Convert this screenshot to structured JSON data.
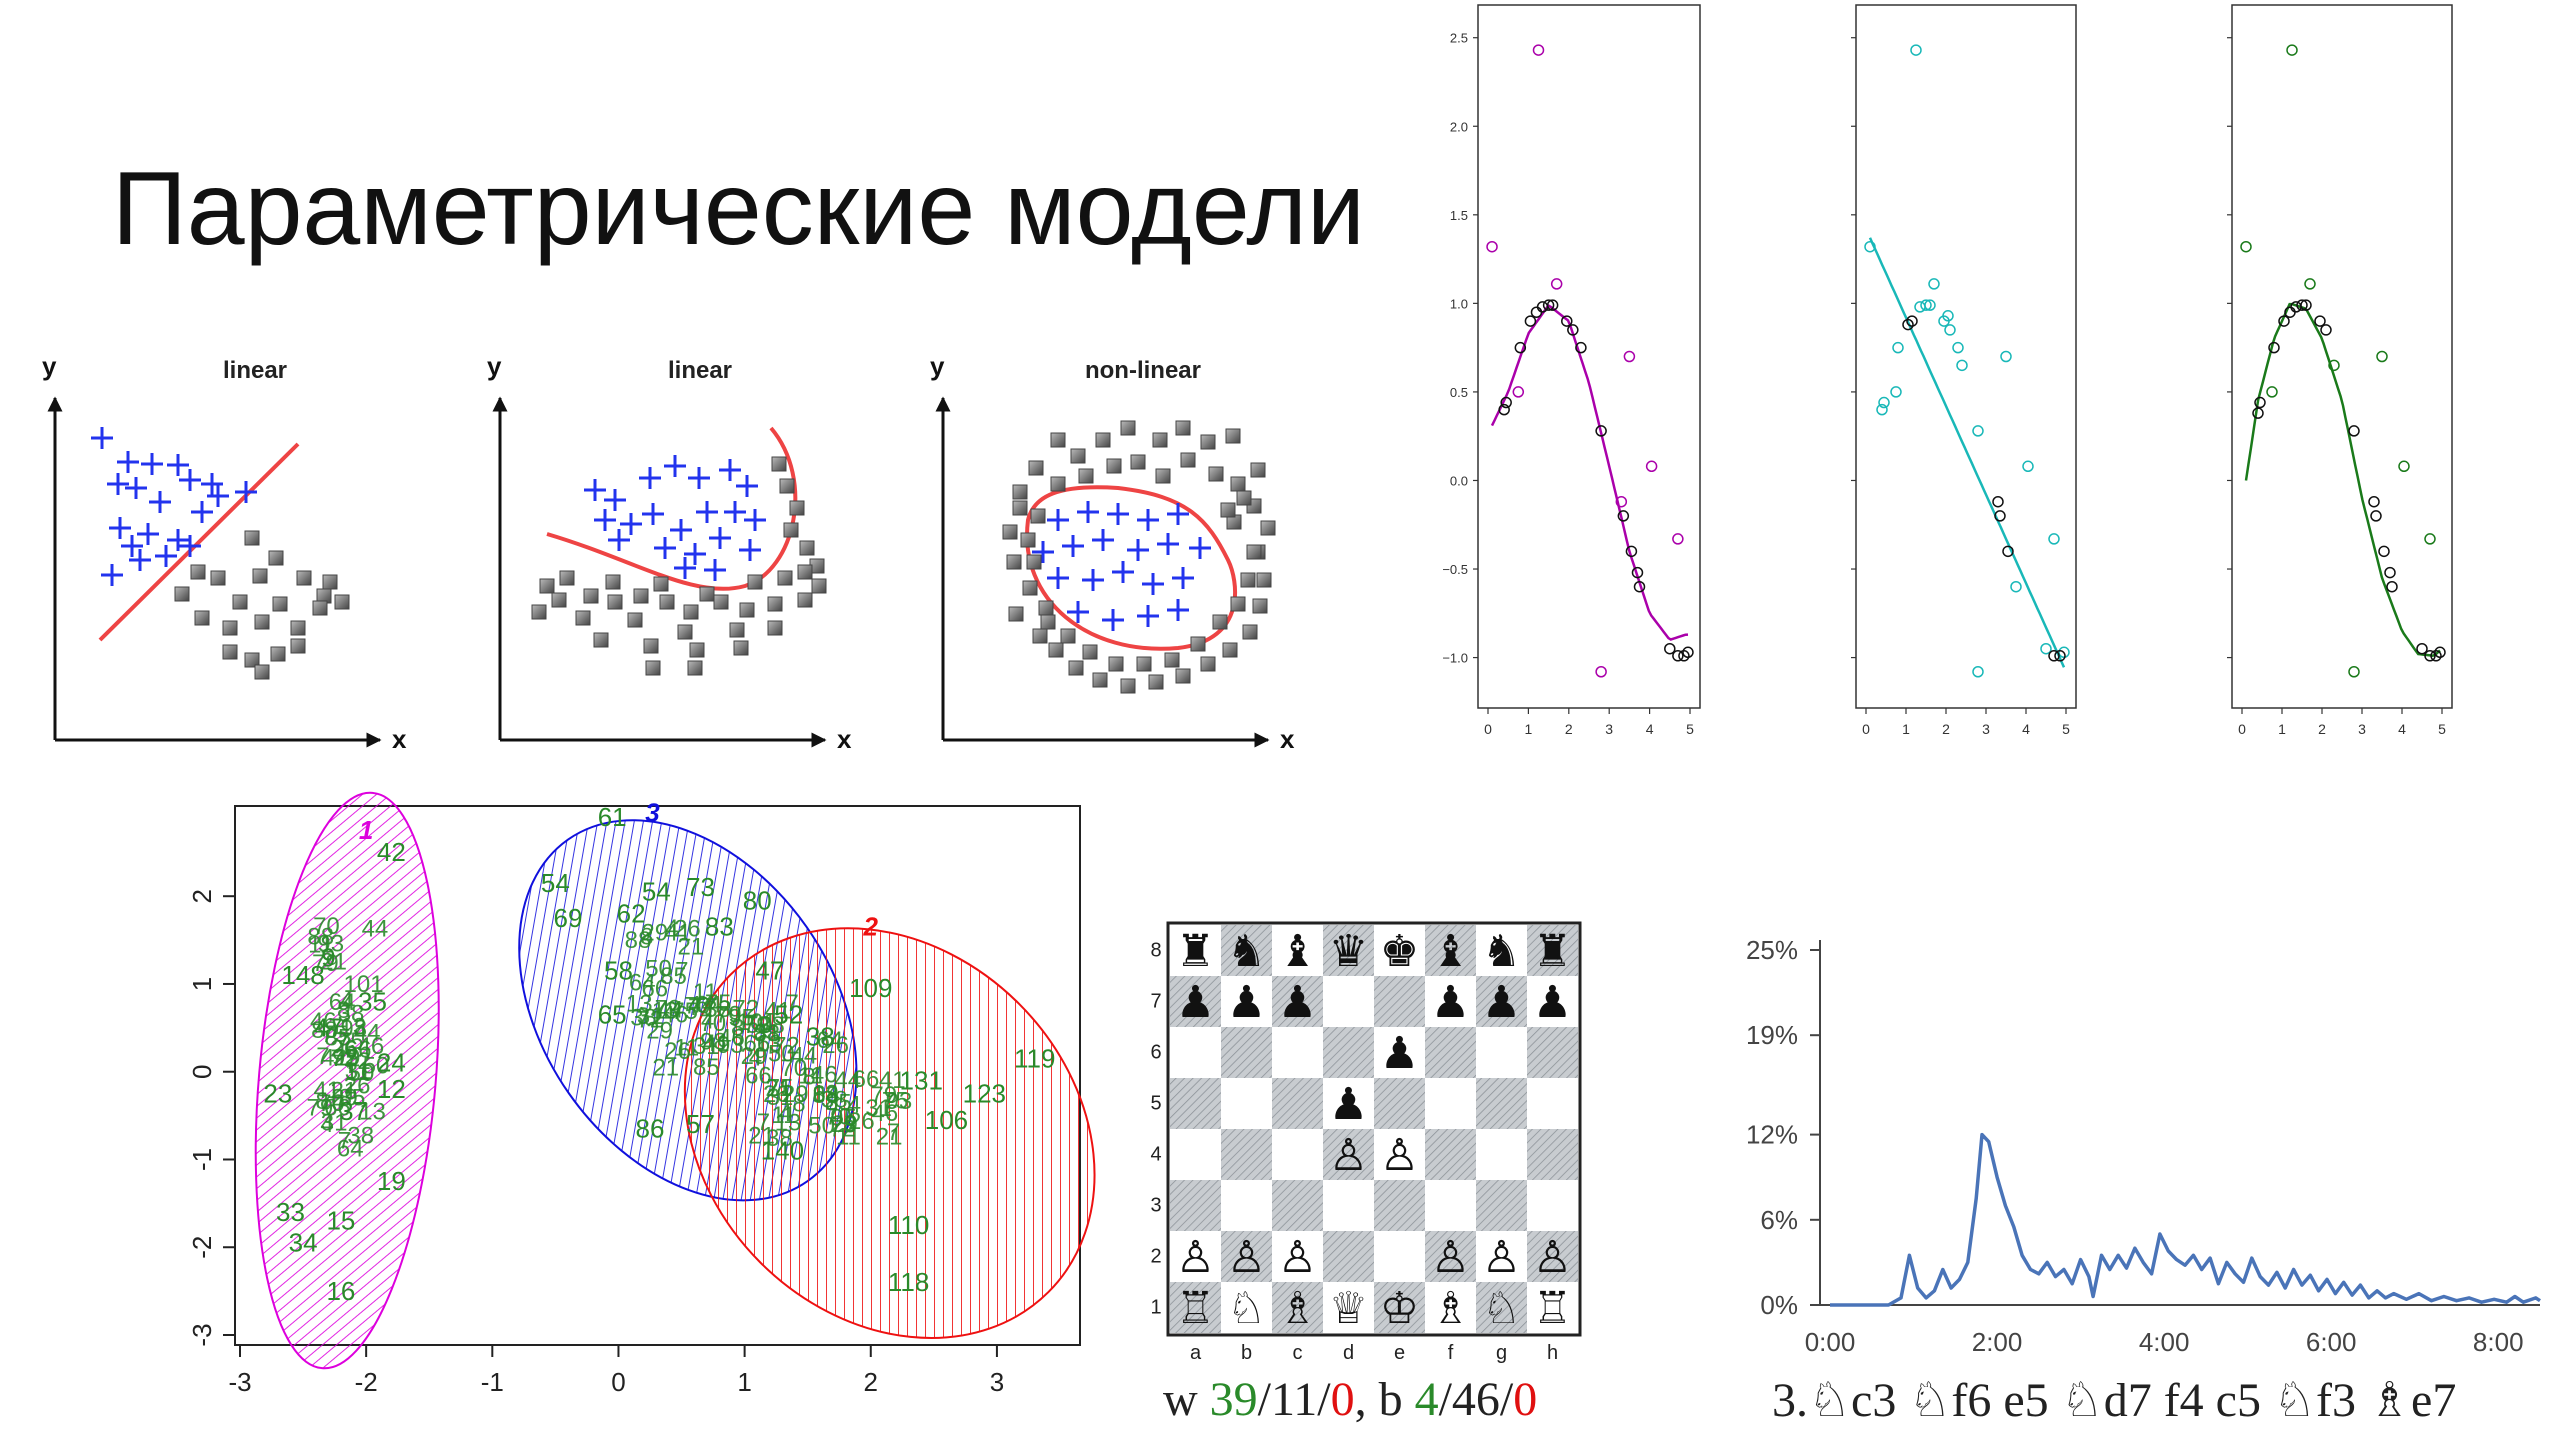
{
  "slide": {
    "title": "Параметрические модели"
  },
  "classifiers": [
    {
      "label": "linear",
      "y": "y",
      "x": "x"
    },
    {
      "label": "linear",
      "y": "y",
      "x": "x"
    },
    {
      "label": "non-linear",
      "y": "y",
      "x": "x"
    }
  ],
  "chart_data": [
    {
      "type": "scatter",
      "panel": "fit-polynomial",
      "fit_color": "#aa00aa",
      "xlim": [
        0,
        5
      ],
      "ylim": [
        -1.2,
        2.6
      ],
      "xticks": [
        "0",
        "1",
        "2",
        "3",
        "4",
        "5"
      ],
      "yticks": [
        "2.5",
        "2.0",
        "1.5",
        "1.0",
        "0.5",
        "0.0",
        "−0.5",
        "−1.0"
      ],
      "series": [
        {
          "points": [
            [
              0.1,
              1.32
            ],
            [
              1.25,
              2.43
            ],
            [
              1.7,
              1.11
            ],
            [
              0.75,
              0.5
            ],
            [
              2.8,
              -1.08
            ],
            [
              3.5,
              0.7
            ],
            [
              4.05,
              0.08
            ],
            [
              4.7,
              -0.33
            ],
            [
              3.3,
              -0.12
            ]
          ]
        },
        {
          "points": [
            [
              0.4,
              0.4
            ],
            [
              0.45,
              0.44
            ],
            [
              0.8,
              0.75
            ],
            [
              1.05,
              0.9
            ],
            [
              1.2,
              0.95
            ],
            [
              1.35,
              0.98
            ],
            [
              1.5,
              0.99
            ],
            [
              1.6,
              0.99
            ],
            [
              1.95,
              0.9
            ],
            [
              2.1,
              0.85
            ],
            [
              2.3,
              0.75
            ],
            [
              2.8,
              0.28
            ],
            [
              3.35,
              -0.2
            ],
            [
              3.55,
              -0.4
            ],
            [
              3.7,
              -0.52
            ],
            [
              3.75,
              -0.6
            ],
            [
              4.5,
              -0.95
            ],
            [
              4.7,
              -0.99
            ],
            [
              4.85,
              -0.99
            ],
            [
              4.95,
              -0.97
            ]
          ]
        }
      ]
    },
    {
      "type": "scatter",
      "panel": "fit-linear",
      "fit_color": "#19b8b8",
      "xlim": [
        0,
        5
      ],
      "ylim": [
        -1.2,
        2.6
      ],
      "xticks": [
        "0",
        "1",
        "2",
        "3",
        "4",
        "5"
      ],
      "series": [
        {
          "points": [
            [
              0.1,
              1.32
            ],
            [
              1.25,
              2.43
            ],
            [
              1.7,
              1.11
            ],
            [
              0.75,
              0.5
            ],
            [
              2.8,
              -1.08
            ],
            [
              3.5,
              0.7
            ],
            [
              4.05,
              0.08
            ],
            [
              4.7,
              -0.33
            ],
            [
              0.4,
              0.4
            ],
            [
              0.45,
              0.44
            ],
            [
              0.8,
              0.75
            ],
            [
              1.35,
              0.98
            ],
            [
              1.5,
              0.99
            ],
            [
              1.6,
              0.99
            ],
            [
              2.1,
              0.85
            ],
            [
              2.3,
              0.75
            ],
            [
              2.8,
              0.28
            ],
            [
              3.75,
              -0.6
            ],
            [
              4.5,
              -0.95
            ],
            [
              4.95,
              -0.97
            ],
            [
              1.95,
              0.9
            ],
            [
              2.05,
              0.93
            ],
            [
              2.4,
              0.65
            ]
          ]
        },
        {
          "points": [
            [
              1.05,
              0.88
            ],
            [
              1.15,
              0.9
            ],
            [
              3.3,
              -0.12
            ],
            [
              3.35,
              -0.2
            ],
            [
              3.55,
              -0.4
            ],
            [
              4.7,
              -0.99
            ],
            [
              4.85,
              -0.99
            ]
          ]
        }
      ]
    },
    {
      "type": "scatter",
      "panel": "fit-nonlinear",
      "fit_color": "#1a7a1a",
      "xlim": [
        0,
        5
      ],
      "ylim": [
        -1.2,
        2.6
      ],
      "xticks": [
        "0",
        "1",
        "2",
        "3",
        "4",
        "5"
      ],
      "series": [
        {
          "points": [
            [
              0.1,
              1.32
            ],
            [
              1.25,
              2.43
            ],
            [
              1.7,
              1.11
            ],
            [
              0.75,
              0.5
            ],
            [
              2.8,
              -1.08
            ],
            [
              3.5,
              0.7
            ],
            [
              4.05,
              0.08
            ],
            [
              4.7,
              -0.33
            ],
            [
              2.3,
              0.65
            ]
          ]
        },
        {
          "points": [
            [
              0.4,
              0.38
            ],
            [
              0.45,
              0.44
            ],
            [
              0.8,
              0.75
            ],
            [
              1.05,
              0.9
            ],
            [
              1.2,
              0.95
            ],
            [
              1.35,
              0.98
            ],
            [
              1.5,
              0.99
            ],
            [
              1.6,
              0.99
            ],
            [
              1.95,
              0.9
            ],
            [
              2.1,
              0.85
            ],
            [
              2.8,
              0.28
            ],
            [
              3.3,
              -0.12
            ],
            [
              3.35,
              -0.2
            ],
            [
              3.55,
              -0.4
            ],
            [
              3.7,
              -0.52
            ],
            [
              3.75,
              -0.6
            ],
            [
              4.5,
              -0.95
            ],
            [
              4.7,
              -0.99
            ],
            [
              4.85,
              -0.99
            ],
            [
              4.95,
              -0.97
            ]
          ]
        }
      ]
    },
    {
      "type": "scatter",
      "panel": "clusters",
      "xlim": [
        -3,
        3.5
      ],
      "ylim": [
        -3,
        2.8
      ],
      "xticks": [
        "-3",
        "-2",
        "-1",
        "0",
        "1",
        "2",
        "3"
      ],
      "yticks": [
        "2",
        "1",
        "0",
        "-1",
        "-2",
        "-3"
      ],
      "clusters": [
        {
          "id": "1",
          "color": "#dd00dd",
          "cx": -2.15,
          "cy": -0.1,
          "rx": 0.7,
          "ry": 2.7,
          "rot": 5
        },
        {
          "id": "3",
          "color": "#1010dd",
          "cx": 0.55,
          "cy": 0.7,
          "rx": 1.15,
          "ry": 1.95,
          "rot": -35
        },
        {
          "id": "2",
          "color": "#ee1111",
          "cx": 2.15,
          "cy": -0.7,
          "rx": 1.45,
          "ry": 2.1,
          "rot": -45
        }
      ],
      "labels": [
        [
          "42",
          -1.8,
          2.4
        ],
        [
          "9",
          -2.3,
          1.2
        ],
        [
          "148",
          -2.5,
          1.0
        ],
        [
          "35",
          -1.95,
          0.7
        ],
        [
          "24",
          -1.8,
          0
        ],
        [
          "23",
          -2.7,
          -0.35
        ],
        [
          "19",
          -1.8,
          -1.35
        ],
        [
          "33",
          -2.6,
          -1.7
        ],
        [
          "15",
          -2.2,
          -1.8
        ],
        [
          "34",
          -2.5,
          -2.05
        ],
        [
          "16",
          -2.2,
          -2.6
        ],
        [
          "47",
          -2.3,
          0.4
        ],
        [
          "12",
          -1.8,
          -0.3
        ],
        [
          "37",
          -2.1,
          -0.55
        ],
        [
          "61",
          -0.05,
          2.8
        ],
        [
          "54",
          -0.5,
          2.05
        ],
        [
          "69",
          -0.4,
          1.65
        ],
        [
          "54",
          0.3,
          1.95
        ],
        [
          "73",
          0.65,
          2.0
        ],
        [
          "80",
          1.1,
          1.85
        ],
        [
          "83",
          0.8,
          1.55
        ],
        [
          "62",
          0.1,
          1.7
        ],
        [
          "58",
          0.0,
          1.05
        ],
        [
          "65",
          -0.05,
          0.55
        ],
        [
          "86",
          0.25,
          -0.75
        ],
        [
          "57",
          0.65,
          -0.7
        ],
        [
          "47",
          1.2,
          1.05
        ],
        [
          "52",
          1.35,
          0.55
        ],
        [
          "38",
          1.6,
          0.3
        ],
        [
          "119",
          3.3,
          0.05
        ],
        [
          "109",
          2.0,
          0.85
        ],
        [
          "123",
          2.9,
          -0.35
        ],
        [
          "131",
          2.4,
          -0.2
        ],
        [
          "106",
          2.6,
          -0.65
        ],
        [
          "110",
          2.3,
          -1.85
        ],
        [
          "118",
          2.3,
          -2.5
        ],
        [
          "140",
          1.3,
          -1.0
        ]
      ]
    },
    {
      "type": "line",
      "panel": "eval-graph",
      "x_ticks": [
        "0:00",
        "2:00",
        "4:00",
        "6:00",
        "8:00"
      ],
      "y_ticks": [
        "25%",
        "19%",
        "12%",
        "6%",
        "0%"
      ],
      "xlim": [
        0,
        8.5
      ],
      "ylim": [
        0,
        25
      ],
      "series": [
        {
          "color": "#4a74b8",
          "points": [
            [
              0,
              0
            ],
            [
              0.7,
              0
            ],
            [
              0.85,
              0.5
            ],
            [
              0.95,
              3.5
            ],
            [
              1.05,
              1.2
            ],
            [
              1.15,
              0.5
            ],
            [
              1.25,
              1.0
            ],
            [
              1.35,
              2.5
            ],
            [
              1.45,
              1.2
            ],
            [
              1.55,
              1.8
            ],
            [
              1.65,
              3.0
            ],
            [
              1.75,
              7.5
            ],
            [
              1.82,
              12.0
            ],
            [
              1.9,
              11.5
            ],
            [
              2.0,
              9.0
            ],
            [
              2.1,
              7.0
            ],
            [
              2.2,
              5.5
            ],
            [
              2.3,
              3.5
            ],
            [
              2.4,
              2.5
            ],
            [
              2.5,
              2.2
            ],
            [
              2.6,
              3.0
            ],
            [
              2.7,
              2.0
            ],
            [
              2.8,
              2.5
            ],
            [
              2.9,
              1.5
            ],
            [
              3.0,
              3.2
            ],
            [
              3.1,
              2.0
            ],
            [
              3.15,
              0.6
            ],
            [
              3.25,
              3.5
            ],
            [
              3.35,
              2.5
            ],
            [
              3.45,
              3.5
            ],
            [
              3.55,
              2.6
            ],
            [
              3.65,
              4.0
            ],
            [
              3.75,
              3.0
            ],
            [
              3.85,
              2.2
            ],
            [
              3.95,
              5.0
            ],
            [
              4.05,
              3.8
            ],
            [
              4.15,
              3.2
            ],
            [
              4.25,
              2.8
            ],
            [
              4.35,
              3.5
            ],
            [
              4.45,
              2.5
            ],
            [
              4.55,
              3.3
            ],
            [
              4.65,
              1.5
            ],
            [
              4.75,
              3.0
            ],
            [
              4.85,
              2.2
            ],
            [
              4.95,
              1.6
            ],
            [
              5.05,
              3.3
            ],
            [
              5.15,
              2.0
            ],
            [
              5.25,
              1.4
            ],
            [
              5.35,
              2.3
            ],
            [
              5.45,
              1.2
            ],
            [
              5.55,
              2.5
            ],
            [
              5.65,
              1.4
            ],
            [
              5.75,
              2.1
            ],
            [
              5.85,
              1.0
            ],
            [
              5.95,
              1.8
            ],
            [
              6.05,
              0.8
            ],
            [
              6.15,
              1.6
            ],
            [
              6.25,
              0.7
            ],
            [
              6.35,
              1.4
            ],
            [
              6.45,
              0.5
            ],
            [
              6.55,
              1.0
            ],
            [
              6.65,
              0.5
            ],
            [
              6.75,
              0.8
            ],
            [
              6.9,
              0.4
            ],
            [
              7.05,
              0.8
            ],
            [
              7.2,
              0.3
            ],
            [
              7.35,
              0.6
            ],
            [
              7.5,
              0.3
            ],
            [
              7.65,
              0.5
            ],
            [
              7.8,
              0.2
            ],
            [
              7.95,
              0.4
            ],
            [
              8.1,
              0.2
            ],
            [
              8.2,
              0.6
            ],
            [
              8.3,
              0.2
            ],
            [
              8.45,
              0.5
            ],
            [
              8.5,
              0.3
            ]
          ]
        }
      ]
    }
  ],
  "chess": {
    "files": [
      "a",
      "b",
      "c",
      "d",
      "e",
      "f",
      "g",
      "h"
    ],
    "ranks": [
      "8",
      "7",
      "6",
      "5",
      "4",
      "3",
      "2",
      "1"
    ],
    "board": [
      [
        "♜",
        "♞",
        "♝",
        "♛",
        "♚",
        "♝",
        "♞",
        "♜"
      ],
      [
        "♟",
        "♟",
        "♟",
        "",
        "",
        "♟",
        "♟",
        "♟"
      ],
      [
        "",
        "",
        "",
        "",
        "♟",
        "",
        "",
        ""
      ],
      [
        "",
        "",
        "",
        "♟",
        "",
        "",
        "",
        ""
      ],
      [
        "",
        "",
        "",
        "♙",
        "♙",
        "",
        "",
        ""
      ],
      [
        "",
        "",
        "",
        "",
        "",
        "",
        "",
        ""
      ],
      [
        "♙",
        "♙",
        "♙",
        "",
        "",
        "♙",
        "♙",
        "♙"
      ],
      [
        "♖",
        "♘",
        "♗",
        "♕",
        "♔",
        "♗",
        "♘",
        "♖"
      ]
    ],
    "score": {
      "w_label": "w",
      "w_win": "39",
      "w_draw": "11",
      "w_loss": "0",
      "b_label": "b",
      "b_win": "4",
      "b_draw": "46",
      "b_loss": "0"
    },
    "moves": "3.♘c3 ♘f6 e5 ♘d7 f4 c5 ♘f3 ♗e7"
  }
}
